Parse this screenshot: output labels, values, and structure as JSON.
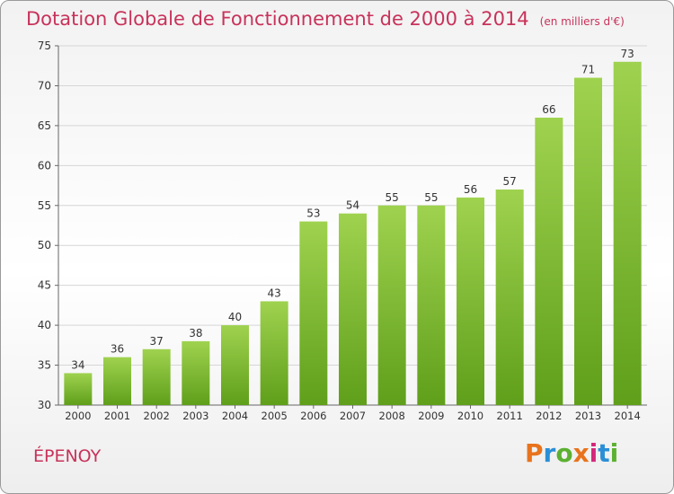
{
  "title": "Dotation Globale de Fonctionnement de 2000 à 2014",
  "subtitle": "(en milliers d'€)",
  "commune": "ÉPENOY",
  "brand": {
    "letters": [
      "P",
      "r",
      "o",
      "x",
      "i",
      "t",
      "i"
    ],
    "colors": [
      "#e8731c",
      "#2b8fd6",
      "#5bb031",
      "#e8731c",
      "#d4287b",
      "#2b8fd6",
      "#5bb031"
    ]
  },
  "chart_data": {
    "type": "bar",
    "categories": [
      "2000",
      "2001",
      "2002",
      "2003",
      "2004",
      "2005",
      "2006",
      "2007",
      "2008",
      "2009",
      "2010",
      "2011",
      "2012",
      "2013",
      "2014"
    ],
    "values": [
      34,
      36,
      37,
      38,
      40,
      43,
      53,
      54,
      55,
      55,
      56,
      57,
      66,
      71,
      73
    ],
    "ylim": [
      30,
      75
    ],
    "yticks": [
      30,
      35,
      40,
      45,
      50,
      55,
      60,
      65,
      70,
      75
    ],
    "grid": true,
    "bar_color": "#7cbb2e",
    "xlabel": "",
    "ylabel": ""
  }
}
